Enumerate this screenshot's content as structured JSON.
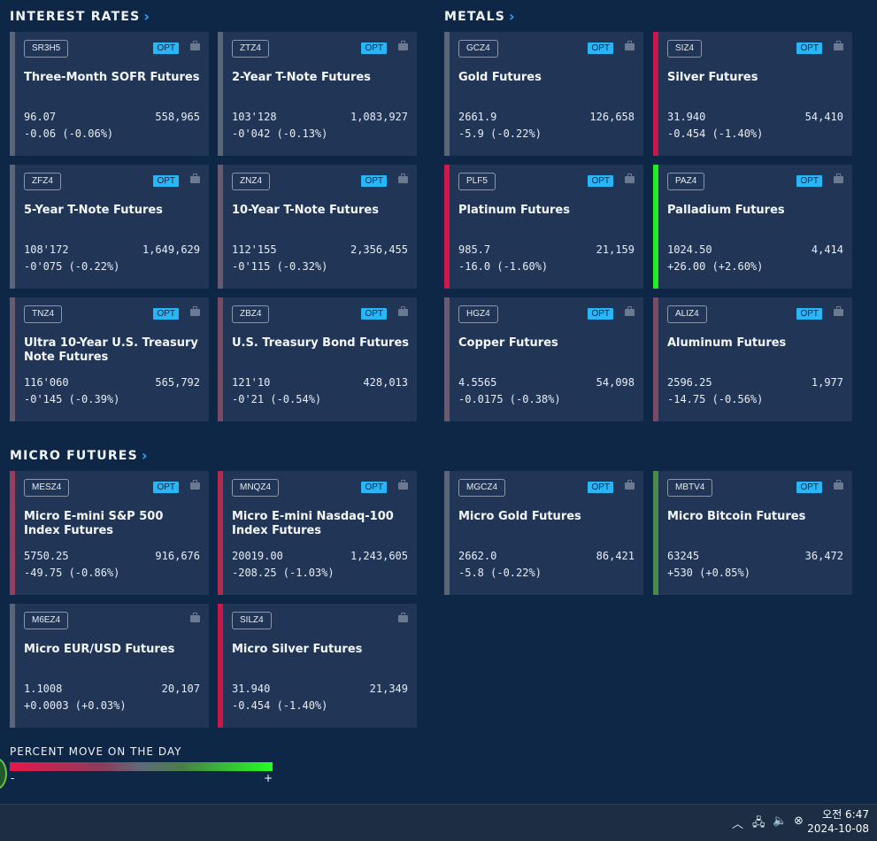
{
  "sections": {
    "interest_rates": "INTEREST RATES",
    "metals": "METALS",
    "micro_futures": "MICRO FUTURES"
  },
  "opt_label": "OPT",
  "tiles": [
    {
      "symbol": "SR3H5",
      "name": "Three-Month SOFR Futures",
      "price": "96.07",
      "volume": "558,965",
      "change": "-0.06 (-0.06%)",
      "opt": true,
      "color": "#5a6678"
    },
    {
      "symbol": "ZTZ4",
      "name": "2-Year T-Note Futures",
      "price": "103'128",
      "volume": "1,083,927",
      "change": "-0'042 (-0.13%)",
      "opt": true,
      "color": "#5a6678"
    },
    {
      "symbol": "GCZ4",
      "name": "Gold Futures",
      "price": "2661.9",
      "volume": "126,658",
      "change": "-5.9 (-0.22%)",
      "opt": true,
      "color": "#5a6678"
    },
    {
      "symbol": "SIZ4",
      "name": "Silver Futures",
      "price": "31.940",
      "volume": "54,410",
      "change": "-0.454 (-1.40%)",
      "opt": true,
      "color": "#c8184a"
    },
    {
      "symbol": "ZFZ4",
      "name": "5-Year T-Note Futures",
      "price": "108'172",
      "volume": "1,649,629",
      "change": "-0'075 (-0.22%)",
      "opt": true,
      "color": "#5a6678"
    },
    {
      "symbol": "ZNZ4",
      "name": "10-Year T-Note Futures",
      "price": "112'155",
      "volume": "2,356,455",
      "change": "-0'115 (-0.32%)",
      "opt": true,
      "color": "#6a5a70"
    },
    {
      "symbol": "PLF5",
      "name": "Platinum Futures",
      "price": "985.7",
      "volume": "21,159",
      "change": "-16.0 (-1.60%)",
      "opt": true,
      "color": "#d0184a"
    },
    {
      "symbol": "PAZ4",
      "name": "Palladium Futures",
      "price": "1024.50",
      "volume": "4,414",
      "change": "+26.00 (+2.60%)",
      "opt": true,
      "color": "#22ee22"
    },
    {
      "symbol": "TNZ4",
      "name": "Ultra 10-Year U.S. Treasury Note Futures",
      "price": "116'060",
      "volume": "565,792",
      "change": "-0'145 (-0.39%)",
      "opt": true,
      "color": "#6a5a70"
    },
    {
      "symbol": "ZBZ4",
      "name": "U.S. Treasury Bond Futures",
      "price": "121'10",
      "volume": "428,013",
      "change": "-0'21 (-0.54%)",
      "opt": true,
      "color": "#7a4a64"
    },
    {
      "symbol": "HGZ4",
      "name": "Copper Futures",
      "price": "4.5565",
      "volume": "54,098",
      "change": "-0.0175 (-0.38%)",
      "opt": true,
      "color": "#6a5a70"
    },
    {
      "symbol": "ALIZ4",
      "name": "Aluminum Futures",
      "price": "2596.25",
      "volume": "1,977",
      "change": "-14.75 (-0.56%)",
      "opt": true,
      "color": "#7a4a64"
    },
    {
      "symbol": "MESZ4",
      "name": "Micro E-mini S&P 500 Index Futures",
      "price": "5750.25",
      "volume": "916,676",
      "change": "-49.75 (-0.86%)",
      "opt": true,
      "color": "#94405e"
    },
    {
      "symbol": "MNQZ4",
      "name": "Micro E-mini Nasdaq-100 Index Futures",
      "price": "20019.00",
      "volume": "1,243,605",
      "change": "-208.25 (-1.03%)",
      "opt": true,
      "color": "#b02a52"
    },
    {
      "symbol": "MGCZ4",
      "name": "Micro Gold Futures",
      "price": "2662.0",
      "volume": "86,421",
      "change": "-5.8 (-0.22%)",
      "opt": true,
      "color": "#5a6678"
    },
    {
      "symbol": "MBTV4",
      "name": "Micro Bitcoin Futures",
      "price": "63245",
      "volume": "36,472",
      "change": "+530 (+0.85%)",
      "opt": true,
      "color": "#4a8a4a"
    },
    {
      "symbol": "M6EZ4",
      "name": "Micro EUR/USD Futures",
      "price": "1.1008",
      "volume": "20,107",
      "change": "+0.0003 (+0.03%)",
      "opt": false,
      "color": "#5a6678"
    },
    {
      "symbol": "SILZ4",
      "name": "Micro Silver Futures",
      "price": "31.940",
      "volume": "21,349",
      "change": "-0.454 (-1.40%)",
      "opt": false,
      "color": "#c8184a"
    }
  ],
  "legend": {
    "title": "PERCENT MOVE ON THE DAY",
    "minus": "-",
    "plus": "+"
  },
  "taskbar": {
    "time": "오전 6:47",
    "date": "2024-10-08"
  }
}
